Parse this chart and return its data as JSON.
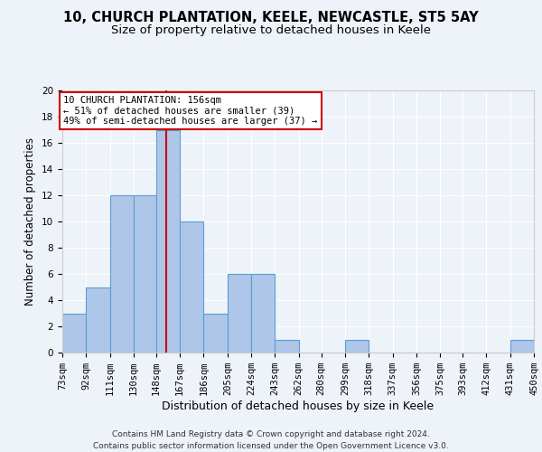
{
  "title1": "10, CHURCH PLANTATION, KEELE, NEWCASTLE, ST5 5AY",
  "title2": "Size of property relative to detached houses in Keele",
  "xlabel": "Distribution of detached houses by size in Keele",
  "ylabel": "Number of detached properties",
  "bin_edges": [
    73,
    92,
    111,
    130,
    148,
    167,
    186,
    205,
    224,
    243,
    262,
    280,
    299,
    318,
    337,
    356,
    375,
    393,
    412,
    431,
    450
  ],
  "bar_heights": [
    3,
    5,
    12,
    12,
    17,
    10,
    3,
    6,
    6,
    1,
    0,
    0,
    1,
    0,
    0,
    0,
    0,
    0,
    0,
    1
  ],
  "bar_color": "#aec6e8",
  "bar_edge_color": "#5a9fd4",
  "red_line_x": 156,
  "ylim": [
    0,
    20
  ],
  "yticks": [
    0,
    2,
    4,
    6,
    8,
    10,
    12,
    14,
    16,
    18,
    20
  ],
  "annotation_text": "10 CHURCH PLANTATION: 156sqm\n← 51% of detached houses are smaller (39)\n49% of semi-detached houses are larger (37) →",
  "annotation_box_color": "#ffffff",
  "annotation_box_edge_color": "#cc0000",
  "footer_text": "Contains HM Land Registry data © Crown copyright and database right 2024.\nContains public sector information licensed under the Open Government Licence v3.0.",
  "background_color": "#eef2f9",
  "grid_color": "#ffffff",
  "title1_fontsize": 10.5,
  "title2_fontsize": 9.5,
  "xlabel_fontsize": 9,
  "ylabel_fontsize": 8.5,
  "tick_fontsize": 7.5,
  "footer_fontsize": 6.5,
  "annotation_fontsize": 7.5
}
